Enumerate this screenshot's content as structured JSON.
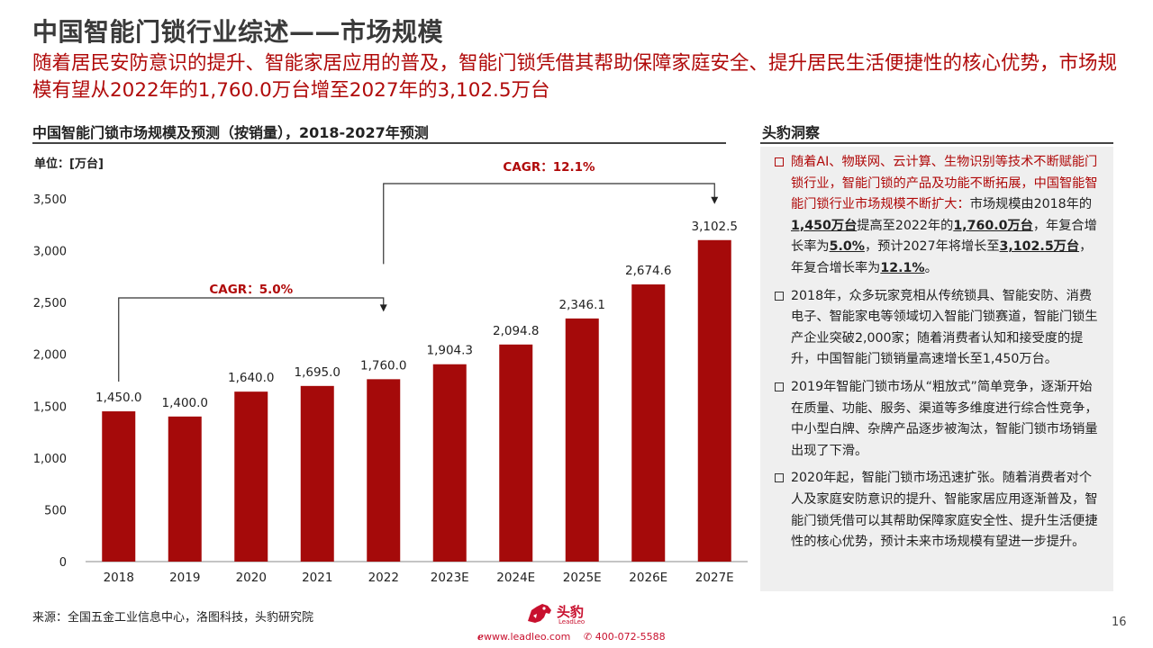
{
  "slide": {
    "title": "中国智能门锁行业综述——市场规模",
    "subtitle": "随着居民安防意识的提升、智能家居应用的普及，智能门锁凭借其帮助保障家庭安全、提升居民生活便捷性的核心优势，市场规模有望从2022年的1,760.0万台增至2027年的3,102.5万台",
    "page_number": "16",
    "source": "来源：全国五金工业信息中心，洛图科技，头豹研究院"
  },
  "chart_data": {
    "type": "bar",
    "title": "中国智能门锁市场规模及预测（按销量），2018-2027年预测",
    "unit": "单位：[万台]",
    "categories": [
      "2018",
      "2019",
      "2020",
      "2021",
      "2022",
      "2023E",
      "2024E",
      "2025E",
      "2026E",
      "2027E"
    ],
    "values": [
      1450.0,
      1400.0,
      1640.0,
      1695.0,
      1760.0,
      1904.3,
      2094.8,
      2346.1,
      2674.6,
      3102.5
    ],
    "value_labels": [
      "1,450.0",
      "1,400.0",
      "1,640.0",
      "1,695.0",
      "1,760.0",
      "1,904.3",
      "2,094.8",
      "2,346.1",
      "2,674.6",
      "3,102.5"
    ],
    "ylim": [
      0,
      3500
    ],
    "yticks": [
      0,
      500,
      1000,
      1500,
      2000,
      2500,
      3000,
      3500
    ],
    "ytick_labels": [
      "0",
      "500",
      "1,000",
      "1,500",
      "2,000",
      "2,500",
      "3,000",
      "3,500"
    ],
    "bar_color": "#a50a0a",
    "grid": false,
    "annotations": [
      {
        "label": "CAGR：5.0%",
        "from": "2018",
        "to": "2022"
      },
      {
        "label": "CAGR：12.1%",
        "from": "2022",
        "to": "2027E"
      }
    ]
  },
  "insights": {
    "title": "头豹洞察",
    "p1_red": "随着AI、物联网、云计算、生物识别等技术不断赋能门锁行业，智能门锁的产品及功能不断拓展，中国智能智能门锁行业市场规模不断扩大：",
    "p1_a": "市场规模由2018年的",
    "p1_v1": "1,450万台",
    "p1_b": "提高至2022年的",
    "p1_v2": "1,760.0万台",
    "p1_c": "，年复合增长率为",
    "p1_v3": "5.0%",
    "p1_d": "，预计2027年将增长至",
    "p1_v4": "3,102.5万台",
    "p1_e": "，年复合增长率为",
    "p1_v5": "12.1%",
    "p1_f": "。",
    "p2": "2018年，众多玩家竞相从传统锁具、智能安防、消费电子、智能家电等领域切入智能门锁赛道，智能门锁生产企业突破2,000家；随着消费者认知和接受度的提升，中国智能门锁销量高速增长至1,450万台。",
    "p3": "2019年智能门锁市场从“粗放式”简单竞争，逐渐开始在质量、功能、服务、渠道等多维度进行综合性竞争，中小型白牌、杂牌产品逐步被淘汰，智能门锁市场销量出现了下滑。",
    "p4": "2020年起，智能门锁市场迅速扩张。随着消费者对个人及家庭安防意识的提升、智能家居应用逐渐普及，智能门锁凭借可以其帮助保障家庭安全性、提升生活便捷性的核心优势，预计未来市场规模有望进一步提升。"
  },
  "footer": {
    "logo_text": "头豹",
    "logo_sub": "LeadLeo",
    "website": "www.leadleo.com",
    "phone": "400-072-5588",
    "brand_color": "#c8102e"
  }
}
